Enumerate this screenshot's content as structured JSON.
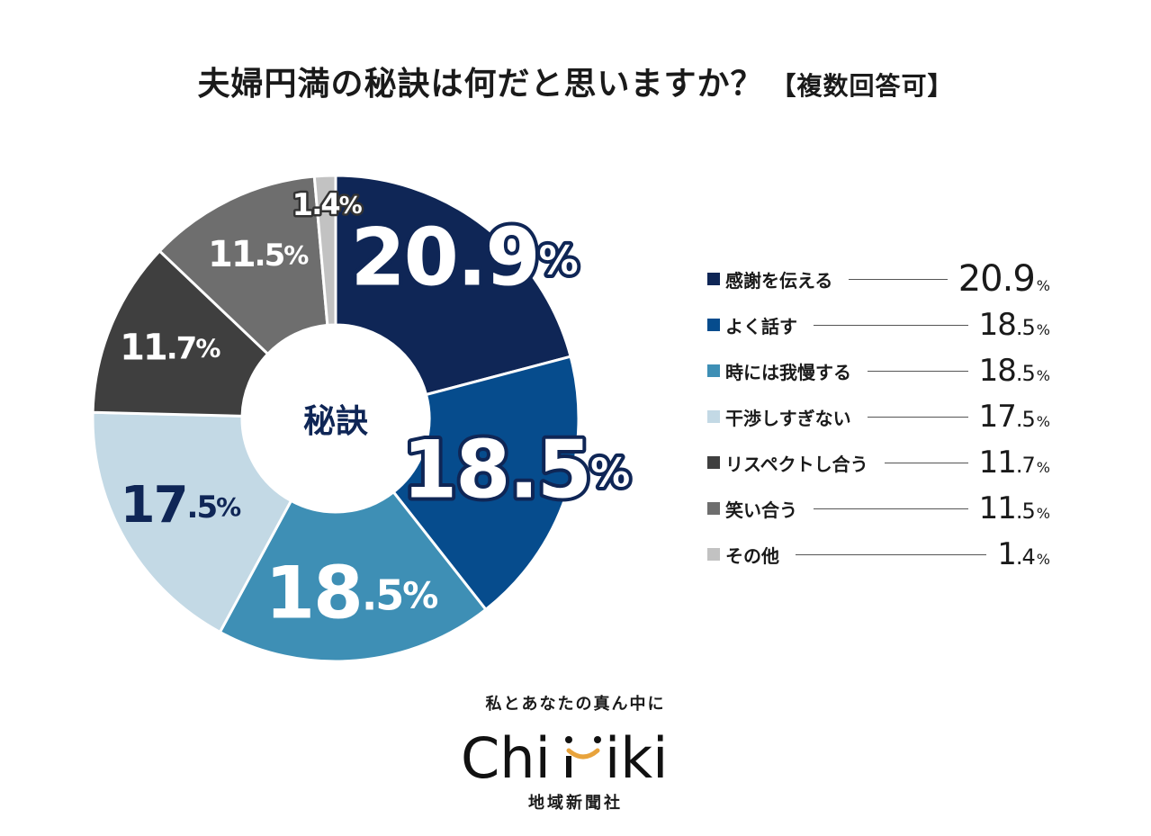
{
  "title": "夫婦円満の秘訣は何だと思いますか？",
  "title_note": "【複数回答可】",
  "center_label": "秘訣",
  "chart_data": {
    "type": "pie",
    "title": "夫婦円満の秘訣は何だと思いますか？【複数回答可】",
    "unit": "%",
    "categories": [
      "感謝を伝える",
      "よく話す",
      "時には我慢する",
      "干渉しすぎない",
      "リスペクトし合う",
      "笑い合う",
      "その他"
    ],
    "values": [
      20.9,
      18.5,
      18.5,
      17.5,
      11.7,
      11.5,
      1.4
    ],
    "colors": [
      "#0f2656",
      "#064c8d",
      "#3e8fb5",
      "#c3d9e5",
      "#3f3f3f",
      "#6e6e6e",
      "#c2c2c2"
    ],
    "label_colors": [
      "#ffffff",
      "#ffffff",
      "#ffffff",
      "#0f2656",
      "#ffffff",
      "#ffffff",
      "#ffffff"
    ],
    "label_styles": [
      "outlined",
      "outlined",
      "plain",
      "plain",
      "plain",
      "plain",
      "outlined"
    ],
    "legend_position": "right"
  },
  "branding": {
    "tagline": "私とあなたの真ん中に",
    "logo_text": "Chiiki",
    "publisher": "地域新聞社"
  }
}
